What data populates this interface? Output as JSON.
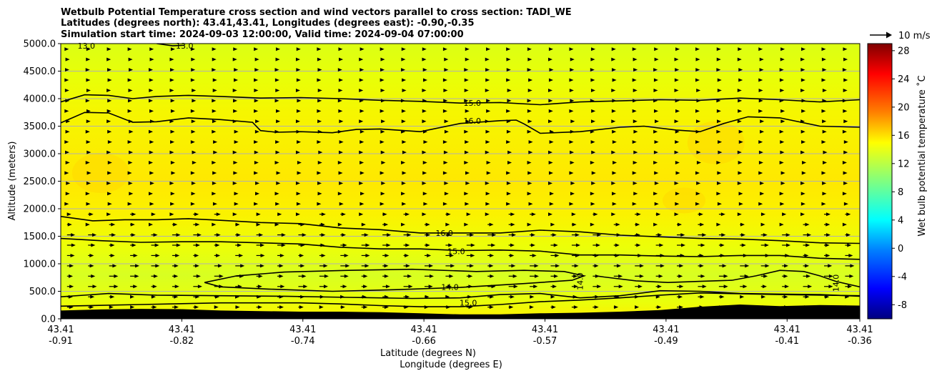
{
  "chart_data": {
    "type": "heatmap",
    "title_lines": [
      "Wetbulb Potential Temperature cross section and wind vectors parallel to cross section: TADI_WE",
      "Latitudes (degrees north): 43.41,43.41, Longitudes (degrees east): -0.90,-0.35",
      "Simulation start time: 2024-09-03 12:00:00, Valid time: 2024-09-04 07:00:00"
    ],
    "ylabel": "Altitude (meters)",
    "xlabel_lat": "Latitude (degrees N)",
    "xlabel_lon": "Longitude (degrees E)",
    "ylim": [
      0,
      5000
    ],
    "yticks": [
      "0.0",
      "500.0",
      "1000.0",
      "1500.0",
      "2000.0",
      "2500.0",
      "3000.0",
      "3500.0",
      "4000.0",
      "4500.0",
      "5000.0"
    ],
    "ytick_values": [
      0,
      500,
      1000,
      1500,
      2000,
      2500,
      3000,
      3500,
      4000,
      4500,
      5000
    ],
    "xticks_lat": [
      "43.41",
      "43.41",
      "43.41",
      "43.41",
      "43.41",
      "43.41",
      "43.41",
      "43.41"
    ],
    "xticks_lon": [
      "-0.91",
      "-0.82",
      "-0.74",
      "-0.66",
      "-0.57",
      "-0.49",
      "-0.41",
      "-0.36"
    ],
    "xtick_fracs": [
      0,
      0.1515,
      0.303,
      0.4545,
      0.606,
      0.7575,
      0.909,
      1.0
    ],
    "colorbar": {
      "label": "Wet bulb potential temperature $^\\circ$C",
      "label_text": "Wet bulb potential temperature ˚C",
      "range": [
        -10,
        29
      ],
      "ticks": [
        "-8",
        "-4",
        "0",
        "4",
        "8",
        "12",
        "16",
        "20",
        "24",
        "28"
      ],
      "tick_values": [
        -8,
        -4,
        0,
        4,
        8,
        12,
        16,
        20,
        24,
        28
      ]
    },
    "quiver_key": {
      "label": "10 m/s"
    },
    "contours": [
      {
        "level": "13.0",
        "labels": [
          "13.0",
          "13.0"
        ],
        "x": [
          0.12,
          0.14,
          0.155
        ],
        "y": [
          5000,
          4960,
          4970
        ]
      },
      {
        "level": "15.0",
        "x": [
          0,
          0.03,
          0.06,
          0.09,
          0.12,
          0.16,
          0.2,
          0.25,
          0.3,
          0.35,
          0.4,
          0.45,
          0.5,
          0.55,
          0.6,
          0.65,
          0.7,
          0.75,
          0.8,
          0.85,
          0.9,
          0.95,
          1.0
        ],
        "y": [
          3940,
          4070,
          4060,
          4000,
          4040,
          4060,
          4040,
          4010,
          4020,
          4000,
          3970,
          3950,
          3920,
          3930,
          3890,
          3940,
          3960,
          3980,
          3970,
          4010,
          3980,
          3940,
          3980
        ]
      },
      {
        "level": "16.0",
        "x": [
          0,
          0.03,
          0.06,
          0.09,
          0.12,
          0.16,
          0.2,
          0.24,
          0.25,
          0.27,
          0.3,
          0.34,
          0.37,
          0.4,
          0.45,
          0.5,
          0.55,
          0.57,
          0.58,
          0.6,
          0.65,
          0.7,
          0.73,
          0.77,
          0.8,
          0.83,
          0.86,
          0.9,
          0.95,
          1.0
        ],
        "y": [
          3560,
          3750,
          3740,
          3570,
          3580,
          3650,
          3620,
          3570,
          3420,
          3390,
          3400,
          3380,
          3440,
          3450,
          3400,
          3550,
          3600,
          3610,
          3540,
          3370,
          3400,
          3480,
          3500,
          3430,
          3400,
          3550,
          3670,
          3650,
          3500,
          3480
        ]
      },
      {
        "level": "16.0",
        "x": [
          0,
          0.04,
          0.08,
          0.12,
          0.16,
          0.2,
          0.25,
          0.3,
          0.35,
          0.4,
          0.45,
          0.5,
          0.55,
          0.6,
          0.65,
          0.7,
          0.75,
          0.8,
          0.85,
          0.9,
          0.95,
          1.0
        ],
        "y": [
          1860,
          1780,
          1800,
          1800,
          1820,
          1790,
          1750,
          1730,
          1650,
          1620,
          1560,
          1560,
          1560,
          1610,
          1580,
          1520,
          1490,
          1460,
          1450,
          1420,
          1380,
          1370
        ]
      },
      {
        "level": "15.0",
        "x": [
          0,
          0.05,
          0.1,
          0.15,
          0.2,
          0.25,
          0.3,
          0.35,
          0.4,
          0.45,
          0.5,
          0.55,
          0.6,
          0.65,
          0.7,
          0.75,
          0.8,
          0.85,
          0.9,
          0.95,
          1.0
        ],
        "y": [
          1460,
          1420,
          1390,
          1400,
          1400,
          1380,
          1360,
          1300,
          1270,
          1270,
          1240,
          1250,
          1230,
          1160,
          1160,
          1140,
          1130,
          1150,
          1150,
          1100,
          1080
        ]
      },
      {
        "level": "14.0",
        "closed": true,
        "x": [
          0.18,
          0.22,
          0.28,
          0.36,
          0.44,
          0.52,
          0.58,
          0.63,
          0.655,
          0.64,
          0.58,
          0.5,
          0.42,
          0.34,
          0.26,
          0.2,
          0.18
        ],
        "y": [
          660,
          780,
          850,
          880,
          900,
          860,
          880,
          860,
          780,
          700,
          640,
          570,
          530,
          500,
          540,
          580,
          660
        ]
      },
      {
        "level": "14.0",
        "x": [
          0.67,
          0.68,
          0.72,
          0.76,
          0.8,
          0.84,
          0.87,
          0.9,
          0.93,
          0.95,
          0.97,
          1.0
        ],
        "y": [
          780,
          760,
          690,
          660,
          680,
          700,
          780,
          880,
          860,
          780,
          680,
          580
        ]
      },
      {
        "level": "14.0",
        "x": [
          0.0,
          0.06,
          0.12,
          0.2,
          0.28,
          0.36,
          0.44,
          0.5,
          0.55,
          0.6,
          0.65,
          0.7,
          0.75,
          0.8,
          0.85,
          0.9,
          0.95,
          1.0
        ],
        "y": [
          400,
          460,
          430,
          420,
          410,
          390,
          370,
          380,
          440,
          460,
          380,
          420,
          510,
          500,
          460,
          450,
          440,
          410
        ]
      },
      {
        "level": "15.0",
        "x": [
          0.0,
          0.1,
          0.2,
          0.3,
          0.35,
          0.4,
          0.45,
          0.5,
          0.55,
          0.6,
          0.65,
          0.7,
          0.75,
          0.8,
          0.9,
          1.0
        ],
        "y": [
          230,
          260,
          290,
          290,
          270,
          240,
          220,
          220,
          260,
          310,
          340,
          380,
          430,
          470,
          440,
          420
        ]
      }
    ],
    "contour_labels": [
      {
        "text": "13.0",
        "x": 0.032,
        "y": 4960
      },
      {
        "text": "13.0",
        "x": 0.155,
        "y": 4960
      },
      {
        "text": "15.0",
        "x": 0.515,
        "y": 3920
      },
      {
        "text": "16.0",
        "x": 0.515,
        "y": 3600
      },
      {
        "text": "16.0",
        "x": 0.48,
        "y": 1560
      },
      {
        "text": "15.0",
        "x": 0.495,
        "y": 1230
      },
      {
        "text": "14.0",
        "x": 0.487,
        "y": 580
      },
      {
        "text": "14.0",
        "x": 0.65,
        "y": 680,
        "vertical": true
      },
      {
        "text": "14.0",
        "x": 0.97,
        "y": 650,
        "vertical": true
      },
      {
        "text": "15.0",
        "x": 0.51,
        "y": 290
      }
    ],
    "terrain": {
      "x": [
        0,
        0.05,
        0.1,
        0.15,
        0.2,
        0.25,
        0.3,
        0.35,
        0.4,
        0.45,
        0.5,
        0.55,
        0.6,
        0.65,
        0.7,
        0.75,
        0.8,
        0.85,
        0.9,
        0.95,
        1.0
      ],
      "y": [
        150,
        170,
        180,
        175,
        150,
        140,
        130,
        130,
        120,
        100,
        80,
        80,
        100,
        110,
        130,
        160,
        220,
        260,
        230,
        250,
        240
      ]
    }
  },
  "colors": {
    "background_field": "#f4f400",
    "terrain": "#000000",
    "grid": "#b0b0b0"
  }
}
